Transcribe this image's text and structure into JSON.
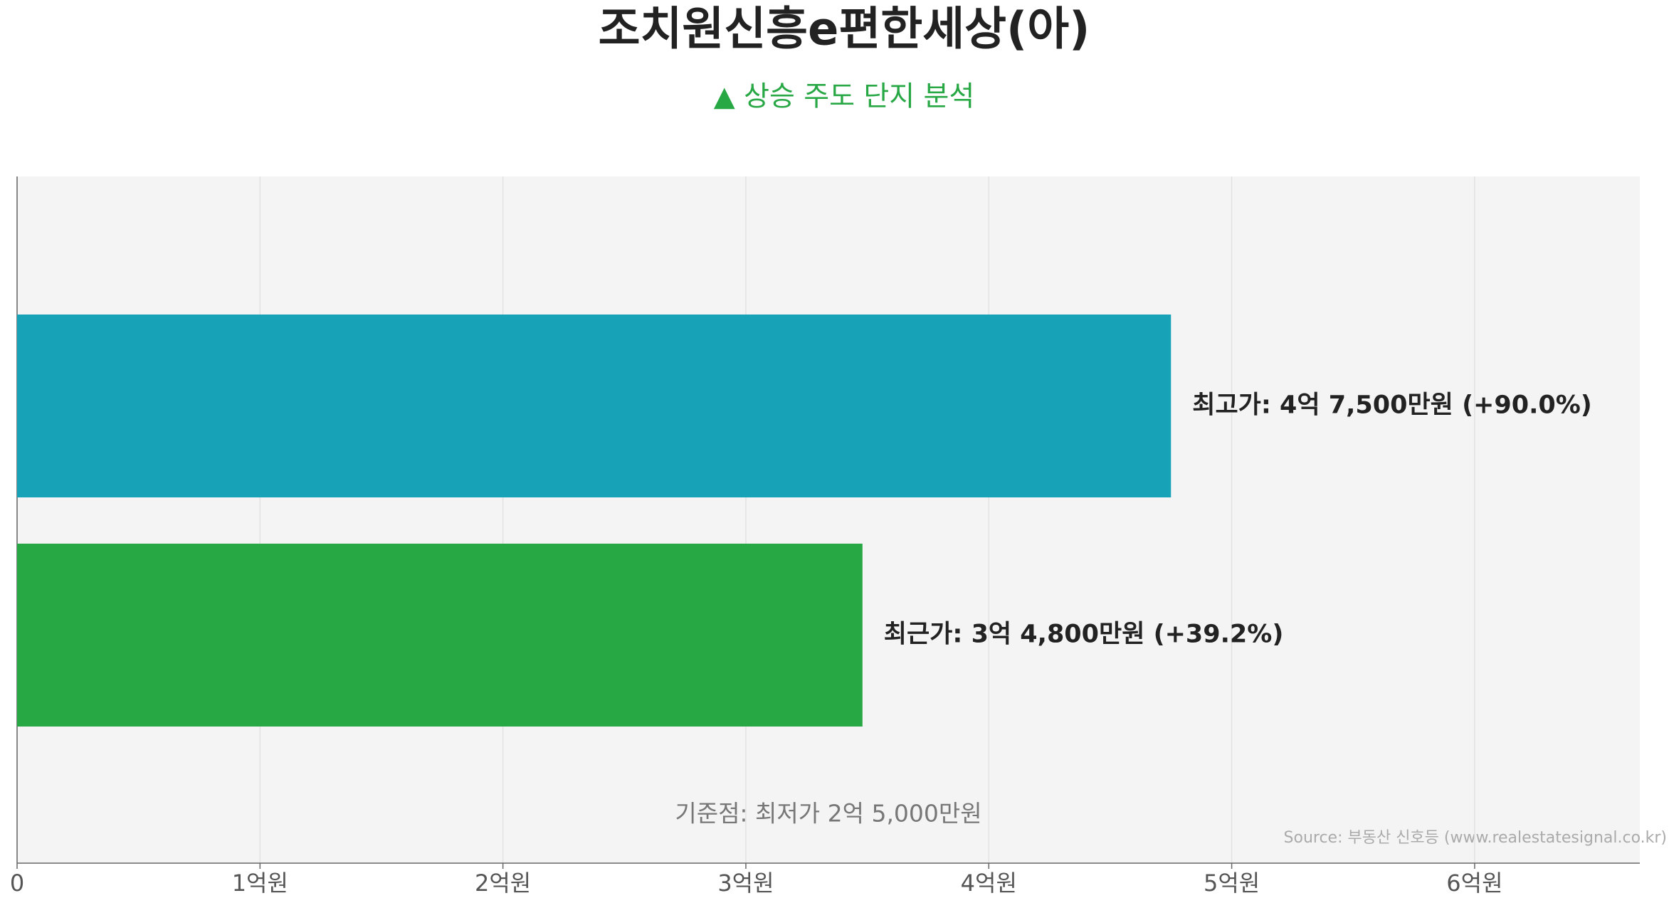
{
  "chart_data": {
    "type": "bar",
    "orientation": "horizontal",
    "title": "조치원신흥e편한세상(아)",
    "subtitle": "▲ 상승 주도 단지 분석",
    "categories": [
      null,
      null
    ],
    "values": [
      4.75,
      3.48
    ],
    "value_labels": [
      "최고가: 4억 7,500만원 (+90.0%)",
      "최근가: 3억 4,800만원 (+39.2%)"
    ],
    "colors": [
      "#17a2b8",
      "#28a745"
    ],
    "xlim": [
      0,
      6.68
    ],
    "xticks": [
      0,
      {
        "value": 1,
        "label": "1억원"
      },
      {
        "value": 2,
        "label": "2억원"
      },
      {
        "value": 3,
        "label": "3억원"
      },
      {
        "value": 4,
        "label": "4억원"
      },
      {
        "value": 5,
        "label": "5억원"
      },
      {
        "value": 6,
        "label": "6억원"
      }
    ],
    "grid": true,
    "annotation": "기준점: 최저가 2억 5,000만원",
    "source": "Source: 부동산 신호등 (www.realestatesignal.co.kr)"
  }
}
